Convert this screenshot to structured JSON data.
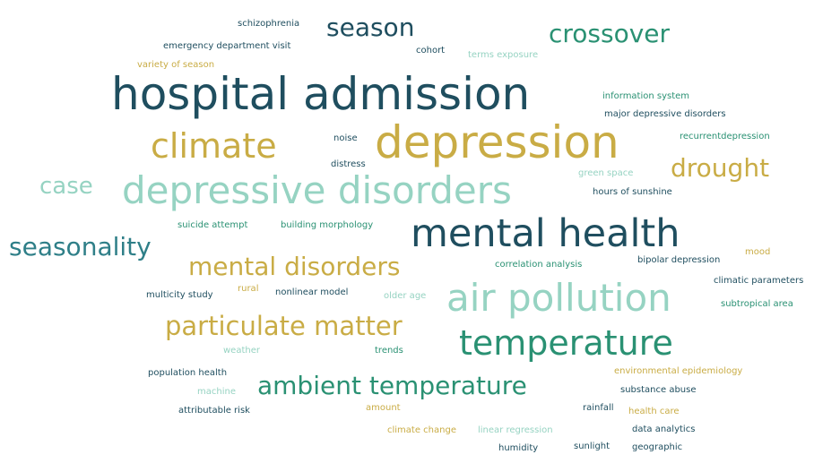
{
  "words": {
    "hospital_admission": "hospital admission",
    "depression": "depression",
    "depressive_disorders": "depressive disorders",
    "mental_health": "mental health",
    "air_pollution": "air pollution",
    "temperature": "temperature",
    "climate": "climate",
    "particulate_matter": "particulate matter",
    "ambient_temperature": "ambient temperature",
    "mental_disorders": "mental disorders",
    "crossover": "crossover",
    "season": "season",
    "drought": "drought",
    "seasonality": "seasonality",
    "case": "case",
    "schizophrenia": "schizophrenia",
    "emergency_department_visit": "emergency department visit",
    "variety_of_season": "variety of season",
    "cohort": "cohort",
    "terms_exposure": "terms exposure",
    "information_system": "information system",
    "major_depressive_disorders": "major depressive disorders",
    "noise": "noise",
    "recurrentdepression": "recurrentdepression",
    "distress": "distress",
    "green_space": "green space",
    "hours_of_sunshine": "hours of sunshine",
    "suicide_attempt": "suicide attempt",
    "building_morphology": "building morphology",
    "mood": "mood",
    "correlation_analysis": "correlation analysis",
    "bipolar_depression": "bipolar depression",
    "climatic_parameters": "climatic parameters",
    "multicity_study": "multicity study",
    "rural": "rural",
    "nonlinear_model": "nonlinear model",
    "older_age": "older age",
    "subtropical_area": "subtropical area",
    "weather": "weather",
    "trends": "trends",
    "population_health": "population health",
    "environmental_epidemiology": "environmental epidemiology",
    "machine": "machine",
    "substance_abuse": "substance abuse",
    "attributable_risk": "attributable risk",
    "amount": "amount",
    "rainfall": "rainfall",
    "health_care": "health care",
    "climate_change": "climate change",
    "linear_regression": "linear regression",
    "data_analytics": "data analytics",
    "humidity": "humidity",
    "sunlight": "sunlight",
    "geographic": "geographic"
  },
  "colors": {
    "dark_teal": "#1f4e5f",
    "green_teal": "#2a9173",
    "light_mint": "#96d3c2",
    "mustard": "#c9ac45",
    "mid_teal": "#2f7f88"
  }
}
